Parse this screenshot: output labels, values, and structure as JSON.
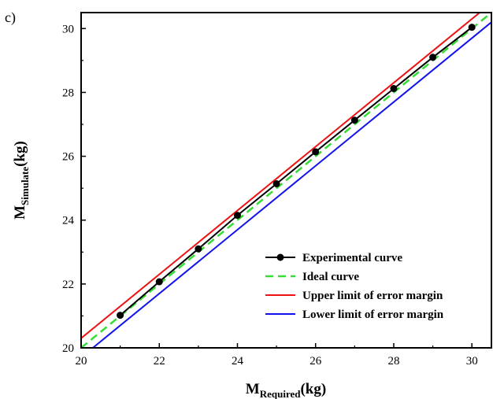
{
  "panel_label": "c)",
  "chart_data": {
    "type": "line",
    "xlabel": {
      "main": "M",
      "sub": "Required",
      "unit": "(kg)"
    },
    "ylabel": {
      "main": "M",
      "sub": "Simulate",
      "unit": "(kg)"
    },
    "xlim": [
      20,
      30.5
    ],
    "ylim": [
      20,
      30.5
    ],
    "xticks": [
      20,
      22,
      24,
      26,
      28,
      30
    ],
    "yticks": [
      20,
      22,
      24,
      26,
      28,
      30
    ],
    "grid": false,
    "legend_position": "bottom-right",
    "series": [
      {
        "name": "Experimental curve",
        "color": "#000000",
        "style": "solid-with-markers",
        "x": [
          21,
          22,
          23,
          24,
          25,
          26,
          27,
          28,
          29,
          30
        ],
        "y": [
          21.02,
          22.07,
          23.1,
          24.15,
          25.14,
          26.14,
          27.13,
          28.12,
          29.1,
          30.04
        ]
      },
      {
        "name": "Ideal curve",
        "color": "#33dd33",
        "style": "dashed",
        "x": [
          20,
          30.5
        ],
        "y": [
          20,
          30.5
        ]
      },
      {
        "name": "Upper limit of error margin",
        "color": "#ee1111",
        "style": "solid",
        "x": [
          20,
          30.5
        ],
        "y": [
          20.3,
          30.8
        ]
      },
      {
        "name": "Lower limit of error margin",
        "color": "#1111ee",
        "style": "solid",
        "x": [
          20,
          30.5
        ],
        "y": [
          19.7,
          30.2
        ]
      }
    ]
  }
}
